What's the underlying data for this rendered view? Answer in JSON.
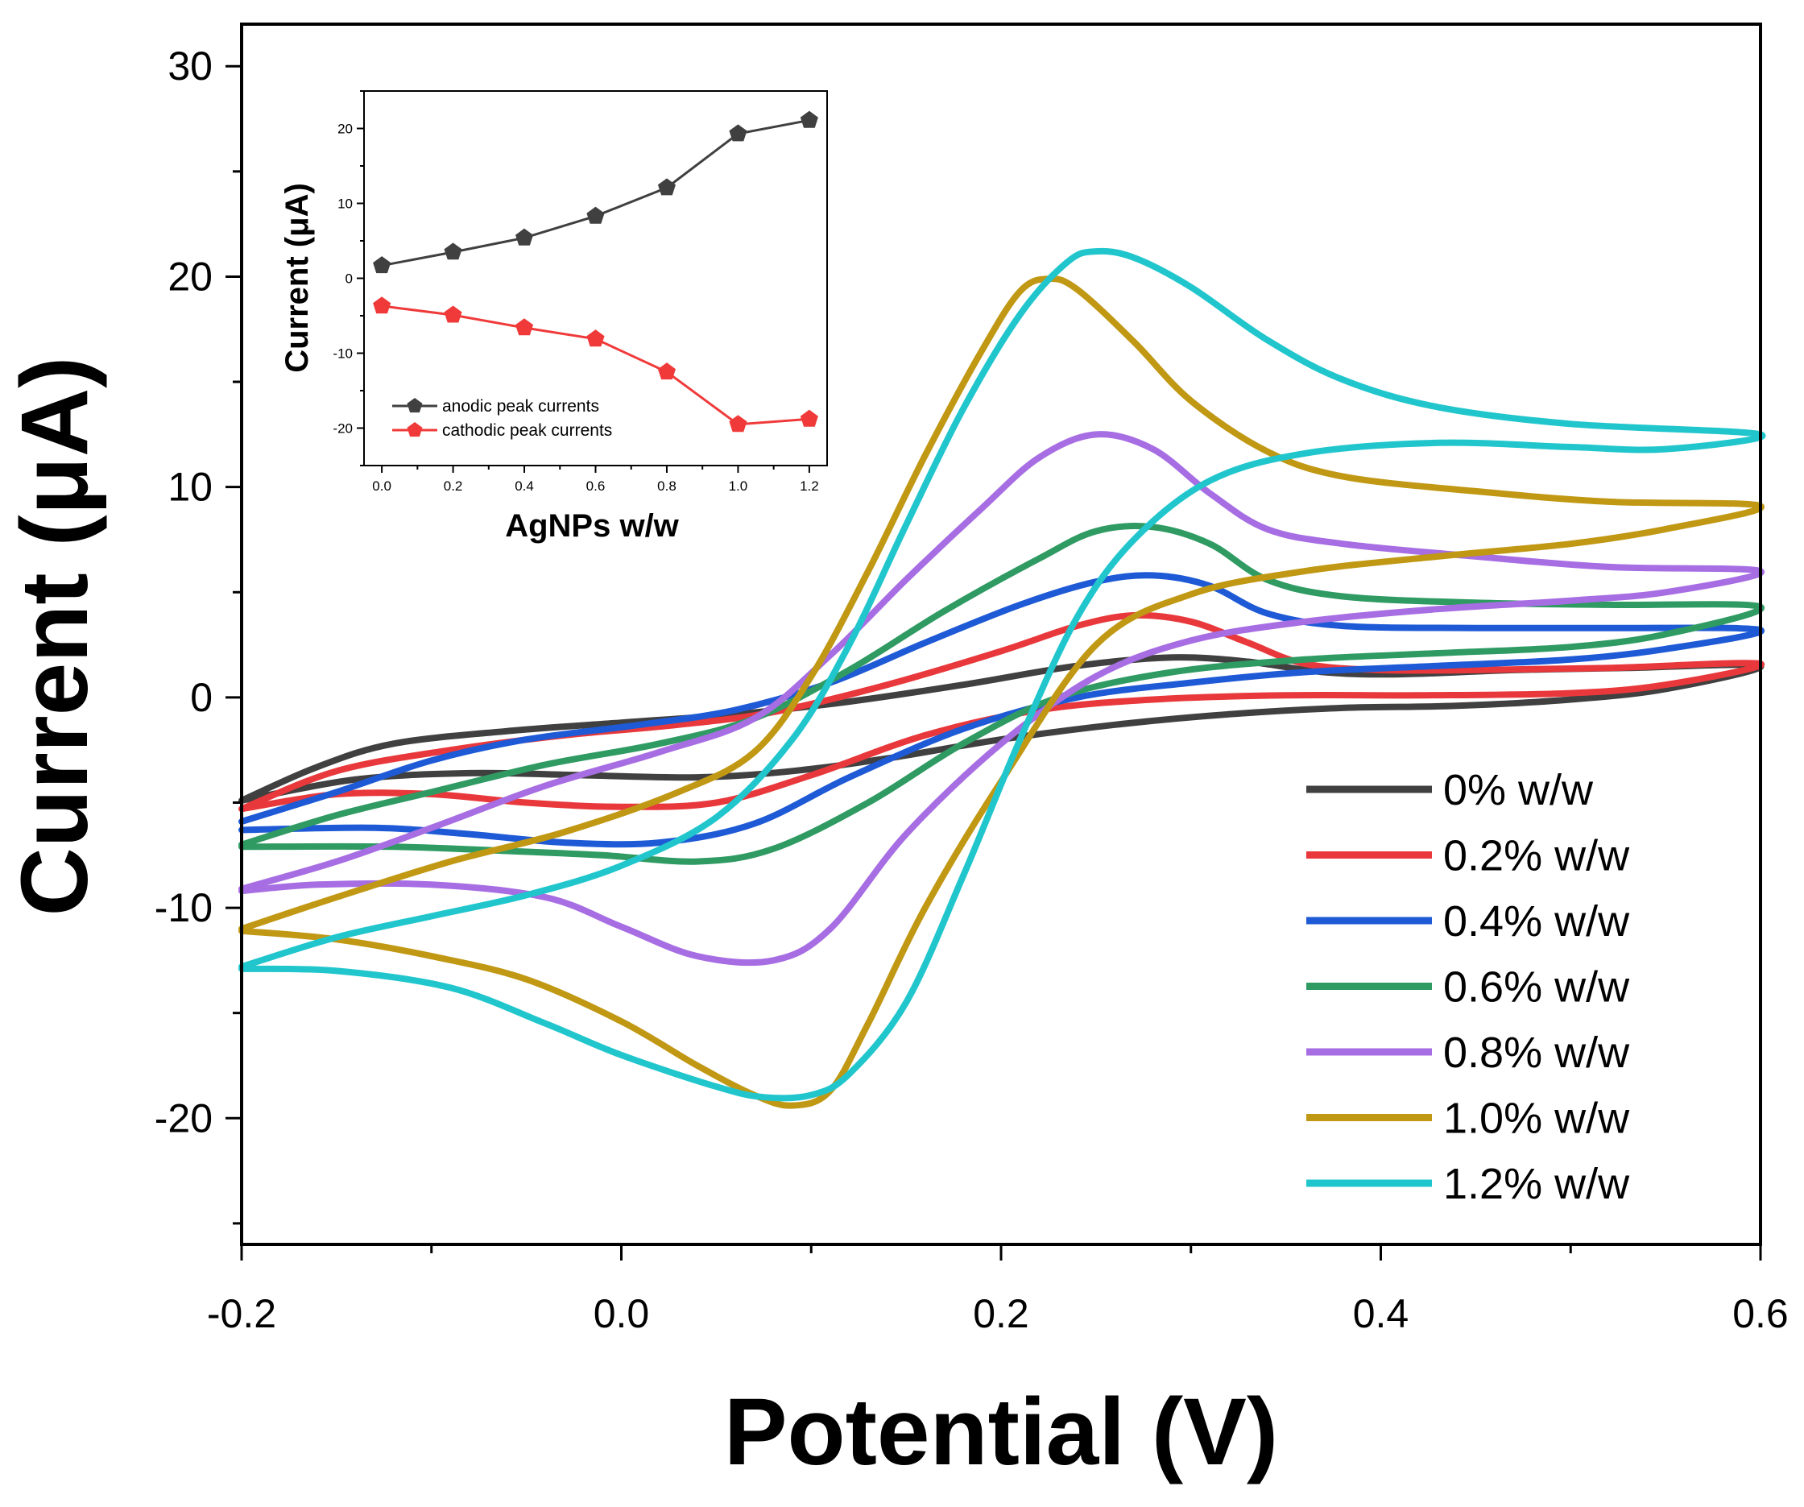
{
  "chart_data": [
    {
      "type": "line",
      "title": "",
      "xlabel": "Potential (V)",
      "ylabel": "Current (μA)",
      "xlim": [
        -0.2,
        0.6
      ],
      "ylim": [
        -26,
        32
      ],
      "x_ticks": [
        -0.2,
        0.0,
        0.2,
        0.4,
        0.6
      ],
      "x_tick_labels": [
        "-0.2",
        "0.0",
        "0.2",
        "0.4",
        "0.6"
      ],
      "y_ticks": [
        -20,
        -10,
        0,
        10,
        20,
        30
      ],
      "y_tick_labels": [
        "-20",
        "-10",
        "0",
        "10",
        "20",
        "30"
      ],
      "legend_position": "bottom-right",
      "series": [
        {
          "name": "0% w/w",
          "color": "#404040",
          "points": [
            [
              -0.2,
              -4.9
            ],
            [
              -0.16,
              -3.3
            ],
            [
              -0.12,
              -2.2
            ],
            [
              -0.06,
              -1.6
            ],
            [
              0.0,
              -1.2
            ],
            [
              0.06,
              -0.8
            ],
            [
              0.12,
              -0.2
            ],
            [
              0.18,
              0.6
            ],
            [
              0.24,
              1.5
            ],
            [
              0.29,
              1.9
            ],
            [
              0.33,
              1.7
            ],
            [
              0.37,
              1.2
            ],
            [
              0.41,
              1.1
            ],
            [
              0.47,
              1.3
            ],
            [
              0.53,
              1.4
            ],
            [
              0.6,
              1.5
            ],
            [
              0.55,
              0.4
            ],
            [
              0.5,
              -0.1
            ],
            [
              0.44,
              -0.4
            ],
            [
              0.38,
              -0.5
            ],
            [
              0.32,
              -0.8
            ],
            [
              0.26,
              -1.3
            ],
            [
              0.2,
              -2.0
            ],
            [
              0.14,
              -2.9
            ],
            [
              0.09,
              -3.5
            ],
            [
              0.04,
              -3.8
            ],
            [
              -0.02,
              -3.7
            ],
            [
              -0.08,
              -3.6
            ],
            [
              -0.14,
              -3.9
            ],
            [
              -0.2,
              -4.9
            ]
          ]
        },
        {
          "name": "0.2% w/w",
          "color": "#e8383b",
          "points": [
            [
              -0.2,
              -5.3
            ],
            [
              -0.15,
              -3.5
            ],
            [
              -0.09,
              -2.5
            ],
            [
              -0.03,
              -1.8
            ],
            [
              0.03,
              -1.3
            ],
            [
              0.08,
              -0.7
            ],
            [
              0.14,
              0.6
            ],
            [
              0.2,
              2.2
            ],
            [
              0.24,
              3.4
            ],
            [
              0.27,
              3.9
            ],
            [
              0.3,
              3.6
            ],
            [
              0.33,
              2.6
            ],
            [
              0.36,
              1.6
            ],
            [
              0.4,
              1.3
            ],
            [
              0.45,
              1.3
            ],
            [
              0.52,
              1.4
            ],
            [
              0.6,
              1.6
            ],
            [
              0.55,
              0.6
            ],
            [
              0.5,
              0.2
            ],
            [
              0.42,
              0.1
            ],
            [
              0.35,
              0.1
            ],
            [
              0.28,
              -0.1
            ],
            [
              0.22,
              -0.6
            ],
            [
              0.16,
              -1.8
            ],
            [
              0.1,
              -3.7
            ],
            [
              0.05,
              -5.0
            ],
            [
              0.0,
              -5.2
            ],
            [
              -0.05,
              -5.0
            ],
            [
              -0.1,
              -4.6
            ],
            [
              -0.15,
              -4.6
            ],
            [
              -0.2,
              -5.3
            ]
          ]
        },
        {
          "name": "0.4% w/w",
          "color": "#1e5ad6",
          "points": [
            [
              -0.2,
              -5.9
            ],
            [
              -0.15,
              -4.5
            ],
            [
              -0.1,
              -3.0
            ],
            [
              -0.05,
              -2.0
            ],
            [
              0.01,
              -1.3
            ],
            [
              0.06,
              -0.6
            ],
            [
              0.11,
              0.7
            ],
            [
              0.16,
              2.6
            ],
            [
              0.21,
              4.4
            ],
            [
              0.25,
              5.5
            ],
            [
              0.28,
              5.8
            ],
            [
              0.31,
              5.3
            ],
            [
              0.34,
              4.0
            ],
            [
              0.38,
              3.4
            ],
            [
              0.45,
              3.3
            ],
            [
              0.52,
              3.3
            ],
            [
              0.6,
              3.2
            ],
            [
              0.55,
              2.3
            ],
            [
              0.5,
              1.8
            ],
            [
              0.43,
              1.5
            ],
            [
              0.36,
              1.2
            ],
            [
              0.3,
              0.7
            ],
            [
              0.24,
              0.0
            ],
            [
              0.18,
              -1.5
            ],
            [
              0.12,
              -3.8
            ],
            [
              0.07,
              -6.0
            ],
            [
              0.02,
              -6.9
            ],
            [
              -0.03,
              -6.9
            ],
            [
              -0.08,
              -6.5
            ],
            [
              -0.13,
              -6.2
            ],
            [
              -0.2,
              -6.3
            ]
          ]
        },
        {
          "name": "0.6% w/w",
          "color": "#2f9b63",
          "points": [
            [
              -0.2,
              -7.0
            ],
            [
              -0.15,
              -5.6
            ],
            [
              -0.1,
              -4.5
            ],
            [
              -0.04,
              -3.2
            ],
            [
              0.02,
              -2.2
            ],
            [
              0.07,
              -1.0
            ],
            [
              0.12,
              1.3
            ],
            [
              0.17,
              4.1
            ],
            [
              0.22,
              6.6
            ],
            [
              0.25,
              7.9
            ],
            [
              0.28,
              8.1
            ],
            [
              0.31,
              7.3
            ],
            [
              0.34,
              5.6
            ],
            [
              0.38,
              4.8
            ],
            [
              0.45,
              4.5
            ],
            [
              0.52,
              4.4
            ],
            [
              0.6,
              4.3
            ],
            [
              0.55,
              3.0
            ],
            [
              0.5,
              2.4
            ],
            [
              0.43,
              2.1
            ],
            [
              0.36,
              1.8
            ],
            [
              0.29,
              1.2
            ],
            [
              0.23,
              0.0
            ],
            [
              0.18,
              -2.2
            ],
            [
              0.13,
              -5.0
            ],
            [
              0.08,
              -7.2
            ],
            [
              0.04,
              -7.8
            ],
            [
              -0.01,
              -7.5
            ],
            [
              -0.06,
              -7.3
            ],
            [
              -0.12,
              -7.1
            ],
            [
              -0.2,
              -7.1
            ]
          ]
        },
        {
          "name": "0.8% w/w",
          "color": "#a76de3",
          "points": [
            [
              -0.2,
              -9.1
            ],
            [
              -0.15,
              -7.8
            ],
            [
              -0.1,
              -6.2
            ],
            [
              -0.04,
              -4.2
            ],
            [
              0.02,
              -2.6
            ],
            [
              0.07,
              -1.0
            ],
            [
              0.11,
              2.0
            ],
            [
              0.15,
              5.6
            ],
            [
              0.19,
              9.0
            ],
            [
              0.22,
              11.4
            ],
            [
              0.25,
              12.5
            ],
            [
              0.28,
              11.8
            ],
            [
              0.31,
              9.7
            ],
            [
              0.34,
              8.0
            ],
            [
              0.38,
              7.3
            ],
            [
              0.45,
              6.7
            ],
            [
              0.52,
              6.2
            ],
            [
              0.6,
              6.0
            ],
            [
              0.55,
              5.0
            ],
            [
              0.5,
              4.6
            ],
            [
              0.43,
              4.2
            ],
            [
              0.36,
              3.6
            ],
            [
              0.3,
              2.7
            ],
            [
              0.25,
              1.0
            ],
            [
              0.2,
              -2.2
            ],
            [
              0.15,
              -6.5
            ],
            [
              0.11,
              -11.0
            ],
            [
              0.08,
              -12.5
            ],
            [
              0.04,
              -12.3
            ],
            [
              0.0,
              -10.9
            ],
            [
              -0.04,
              -9.5
            ],
            [
              -0.1,
              -8.9
            ],
            [
              -0.16,
              -8.9
            ],
            [
              -0.2,
              -9.2
            ]
          ]
        },
        {
          "name": "1.0% w/w",
          "color": "#c19813",
          "points": [
            [
              -0.2,
              -11.0
            ],
            [
              -0.15,
              -9.5
            ],
            [
              -0.09,
              -7.8
            ],
            [
              -0.03,
              -6.4
            ],
            [
              0.03,
              -4.5
            ],
            [
              0.07,
              -2.6
            ],
            [
              0.1,
              1.0
            ],
            [
              0.13,
              6.0
            ],
            [
              0.16,
              11.5
            ],
            [
              0.19,
              16.5
            ],
            [
              0.21,
              19.3
            ],
            [
              0.225,
              19.9
            ],
            [
              0.24,
              19.4
            ],
            [
              0.27,
              16.9
            ],
            [
              0.3,
              14.1
            ],
            [
              0.34,
              11.7
            ],
            [
              0.38,
              10.5
            ],
            [
              0.45,
              9.8
            ],
            [
              0.52,
              9.3
            ],
            [
              0.6,
              9.1
            ],
            [
              0.55,
              8.0
            ],
            [
              0.5,
              7.3
            ],
            [
              0.43,
              6.7
            ],
            [
              0.36,
              6.0
            ],
            [
              0.3,
              4.9
            ],
            [
              0.25,
              2.5
            ],
            [
              0.2,
              -4.0
            ],
            [
              0.16,
              -10.0
            ],
            [
              0.13,
              -15.5
            ],
            [
              0.11,
              -18.7
            ],
            [
              0.09,
              -19.4
            ],
            [
              0.07,
              -18.9
            ],
            [
              0.04,
              -17.5
            ],
            [
              0.0,
              -15.4
            ],
            [
              -0.05,
              -13.4
            ],
            [
              -0.1,
              -12.3
            ],
            [
              -0.15,
              -11.5
            ],
            [
              -0.2,
              -11.1
            ]
          ]
        },
        {
          "name": "1.2% w/w",
          "color": "#21c6cd",
          "points": [
            [
              -0.2,
              -12.8
            ],
            [
              -0.15,
              -11.4
            ],
            [
              -0.1,
              -10.4
            ],
            [
              -0.05,
              -9.4
            ],
            [
              0.0,
              -8.0
            ],
            [
              0.05,
              -5.7
            ],
            [
              0.09,
              -2.0
            ],
            [
              0.12,
              2.5
            ],
            [
              0.15,
              8.2
            ],
            [
              0.18,
              13.7
            ],
            [
              0.21,
              18.2
            ],
            [
              0.235,
              20.7
            ],
            [
              0.25,
              21.2
            ],
            [
              0.27,
              20.9
            ],
            [
              0.3,
              19.5
            ],
            [
              0.34,
              17.0
            ],
            [
              0.38,
              15.1
            ],
            [
              0.43,
              13.8
            ],
            [
              0.5,
              13.0
            ],
            [
              0.6,
              12.5
            ],
            [
              0.55,
              11.8
            ],
            [
              0.5,
              11.9
            ],
            [
              0.43,
              12.1
            ],
            [
              0.36,
              11.6
            ],
            [
              0.31,
              10.3
            ],
            [
              0.27,
              7.5
            ],
            [
              0.24,
              3.8
            ],
            [
              0.21,
              -2.0
            ],
            [
              0.18,
              -8.5
            ],
            [
              0.15,
              -14.5
            ],
            [
              0.12,
              -17.9
            ],
            [
              0.1,
              -18.9
            ],
            [
              0.075,
              -19.0
            ],
            [
              0.05,
              -18.5
            ],
            [
              0.0,
              -17.0
            ],
            [
              -0.04,
              -15.5
            ],
            [
              -0.09,
              -13.8
            ],
            [
              -0.15,
              -13.0
            ],
            [
              -0.2,
              -12.9
            ]
          ]
        }
      ]
    },
    {
      "type": "line",
      "title": "",
      "xlabel": "AgNPs w/w",
      "ylabel": "Current (μA)",
      "xlim": [
        -0.05,
        1.25
      ],
      "ylim": [
        -25,
        25
      ],
      "x_ticks": [
        0.0,
        0.2,
        0.4,
        0.6,
        0.8,
        1.0,
        1.2
      ],
      "x_tick_labels": [
        "0.0",
        "0.2",
        "0.4",
        "0.6",
        "0.8",
        "1.0",
        "1.2"
      ],
      "y_ticks": [
        -20,
        -10,
        0,
        10,
        20
      ],
      "y_tick_labels": [
        "-20",
        "-10",
        "0",
        "10",
        "20"
      ],
      "legend_position": "bottom-left",
      "x": [
        0.0,
        0.2,
        0.4,
        0.6,
        0.8,
        1.0,
        1.2
      ],
      "series": [
        {
          "name": "anodic peak currents",
          "color": "#404040",
          "marker": "pentagon",
          "values": [
            1.7,
            3.5,
            5.4,
            8.3,
            12.1,
            19.3,
            21.1
          ]
        },
        {
          "name": "cathodic peak currents",
          "color": "#f03a3a",
          "marker": "pentagon",
          "values": [
            -3.7,
            -4.9,
            -6.6,
            -8.1,
            -12.5,
            -19.5,
            -18.8
          ]
        }
      ]
    }
  ]
}
